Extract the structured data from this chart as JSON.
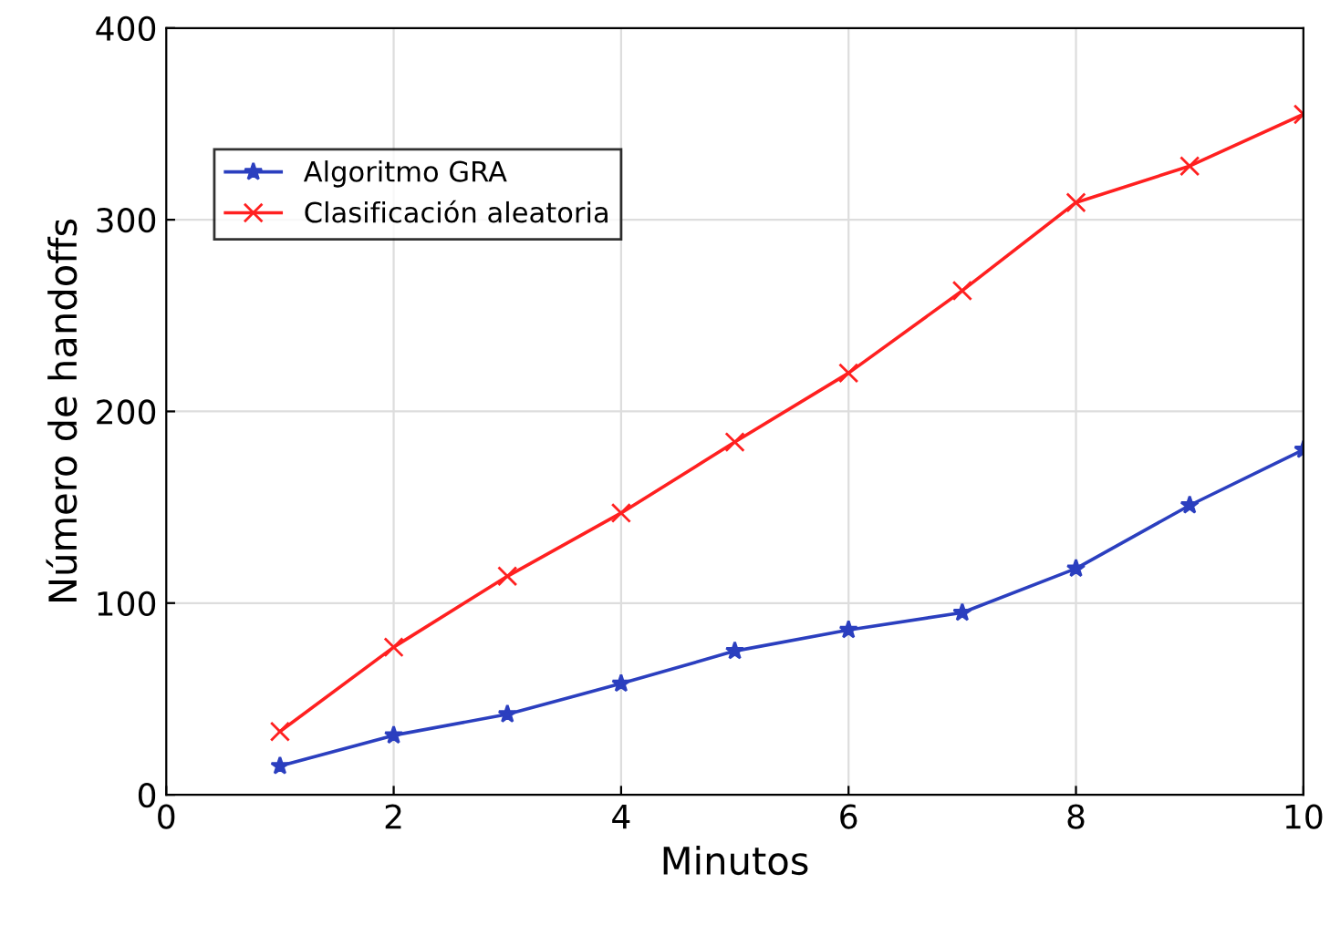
{
  "chart_data": {
    "type": "line",
    "xlabel": "Minutos",
    "ylabel": "Número de handoffs",
    "x": [
      1,
      2,
      3,
      4,
      5,
      6,
      7,
      8,
      9,
      10
    ],
    "series": [
      {
        "name": "Algoritmo GRA",
        "color": "#2b3fbf",
        "marker": "star",
        "values": [
          15,
          31,
          42,
          58,
          75,
          86,
          95,
          118,
          151,
          180
        ]
      },
      {
        "name": "Clasificación aleatoria",
        "color": "#ff2020",
        "marker": "cross",
        "values": [
          33,
          77,
          114,
          147,
          184,
          220,
          263,
          309,
          328,
          355
        ]
      }
    ],
    "xlim": [
      0,
      10
    ],
    "ylim": [
      0,
      400
    ],
    "xticks": [
      0,
      2,
      4,
      6,
      8,
      10
    ],
    "yticks": [
      0,
      100,
      200,
      300,
      400
    ],
    "grid": true,
    "legend": "top left",
    "line_style": "solid"
  }
}
